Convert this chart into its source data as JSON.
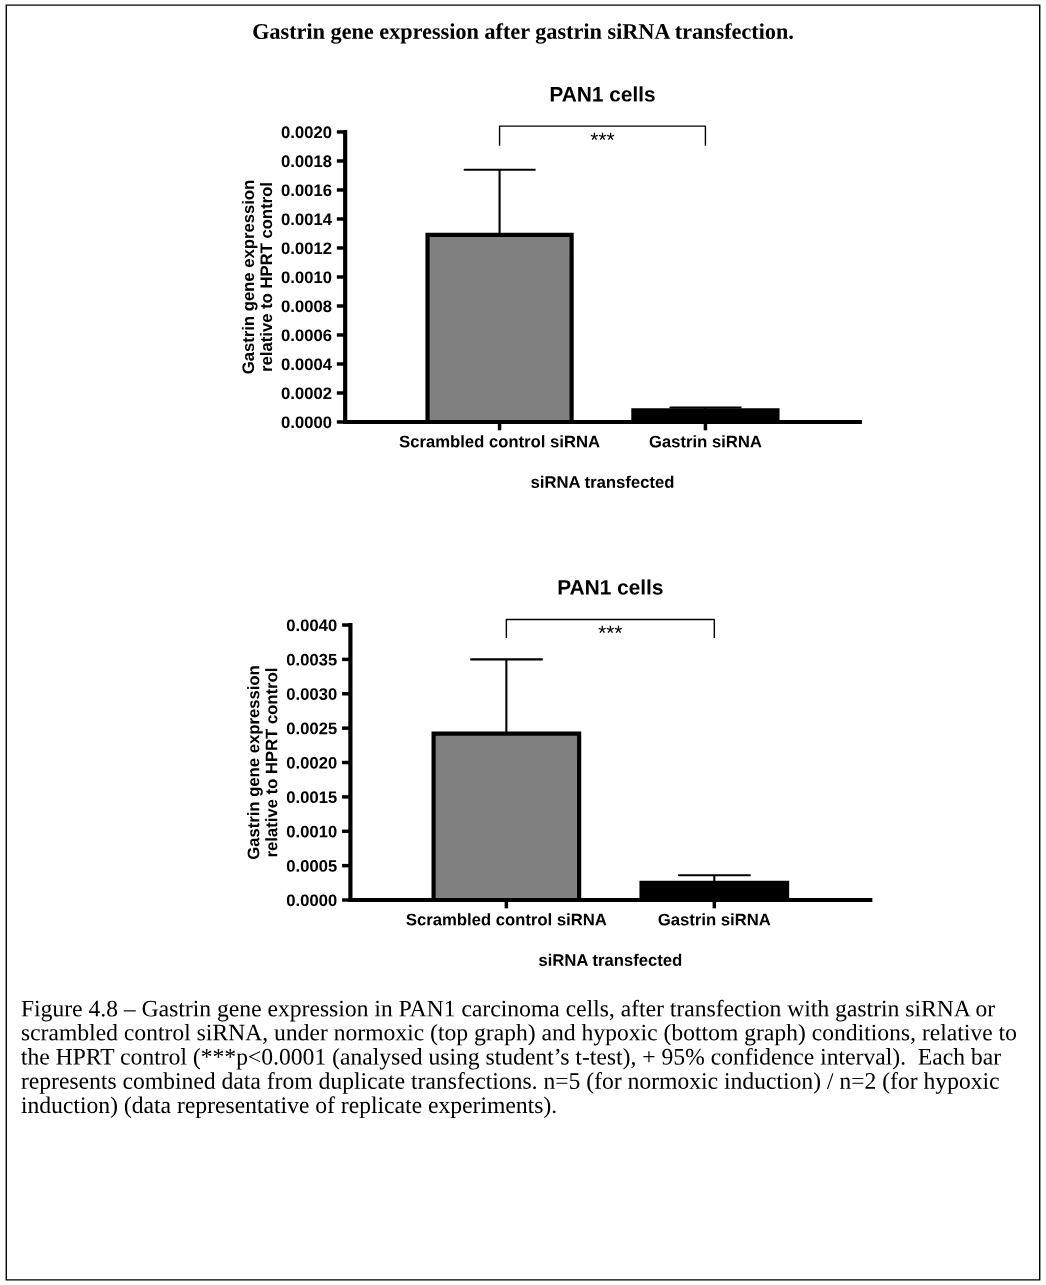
{
  "chart_data": [
    {
      "type": "bar",
      "title": "PAN1 cells",
      "xlabel": "siRNA transfected",
      "ylabel": "Gastrin gene expression\nrelative to HPRT control",
      "categories": [
        "Scrambled control siRNA",
        "Gastrin siRNA"
      ],
      "values": [
        0.00129,
        8e-05
      ],
      "colors": [
        "#808080",
        "#000000"
      ],
      "errors": [
        [
          0.00129,
          0.00174
        ],
        [
          8e-05,
          0.0001
        ]
      ],
      "ylim": [
        0,
        0.002
      ],
      "yticks": [
        {
          "value": 0,
          "label": "0.0000"
        },
        {
          "value": 0.0002,
          "label": "0.0002"
        },
        {
          "value": 0.0004,
          "label": "0.0004"
        },
        {
          "value": 0.0006,
          "label": "0.0006"
        },
        {
          "value": 0.0008,
          "label": "0.0008"
        },
        {
          "value": 0.001,
          "label": "0.0010"
        },
        {
          "value": 0.0012,
          "label": "0.0012"
        },
        {
          "value": 0.0014,
          "label": "0.0014"
        },
        {
          "value": 0.0016,
          "label": "0.0016"
        },
        {
          "value": 0.0018,
          "label": "0.0018"
        },
        {
          "value": 0.002,
          "label": "0.0020"
        }
      ],
      "grid": false,
      "annotations": [
        "***",
        "Gastrin gene expression after gastrin siRNA transfection."
      ]
    },
    {
      "type": "bar",
      "title": "PAN1 cells",
      "xlabel": "siRNA transfected",
      "ylabel": "Gastrin gene expression\nrelative to HPRT control",
      "categories": [
        "Scrambled control siRNA",
        "Gastrin siRNA"
      ],
      "values": [
        0.00242,
        0.00025
      ],
      "colors": [
        "#808080",
        "#000000"
      ],
      "errors": [
        [
          0.00242,
          0.0035
        ],
        [
          0.00025,
          0.00036
        ]
      ],
      "ylim": [
        0,
        0.004
      ],
      "yticks": [
        {
          "value": 0,
          "label": "0.0000"
        },
        {
          "value": 0.0005,
          "label": "0.0005"
        },
        {
          "value": 0.001,
          "label": "0.0010"
        },
        {
          "value": 0.0015,
          "label": "0.0015"
        },
        {
          "value": 0.002,
          "label": "0.0020"
        },
        {
          "value": 0.0025,
          "label": "0.0025"
        },
        {
          "value": 0.003,
          "label": "0.0030"
        },
        {
          "value": 0.0035,
          "label": "0.0035"
        },
        {
          "value": 0.004,
          "label": "0.0040"
        }
      ],
      "grid": false,
      "annotations": [
        "***",
        "Figure 4.8 – Gastrin gene expression in PAN1 carcinoma cells, after transfection with gastrin siRNA or scrambled control siRNA, under normoxic (top graph) and hypoxic (bottom graph) conditions, relative to the HPRT control (***p<0.0001 (analysed using student’s t-test), + 95% confidence interval).  Each bar represents combined data from duplicate transfections. n=5 (for normoxic induction) / n=2 (for hypoxic induction) (data representative of replicate experiments)."
      ]
    }
  ]
}
